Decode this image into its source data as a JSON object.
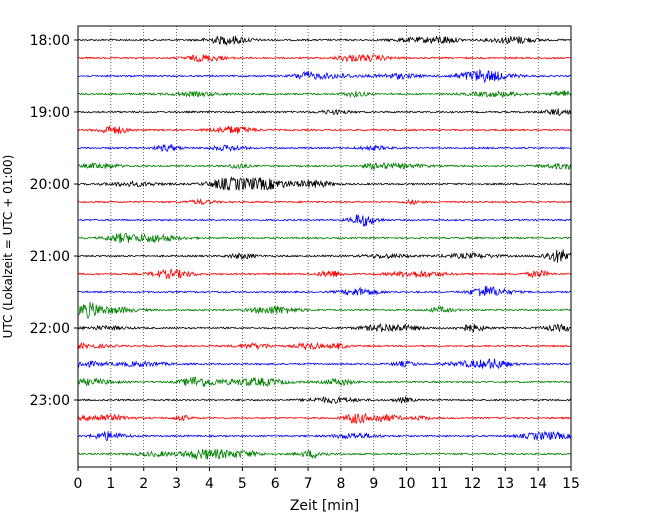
{
  "chart_data": {
    "type": "line",
    "subtype": "helicorder",
    "xlabel": "Zeit  [min]",
    "ylabel": "UTC (Lokalzeit = UTC + 01:00)",
    "xlim": [
      0,
      15
    ],
    "x_ticks": [
      0,
      1,
      2,
      3,
      4,
      5,
      6,
      7,
      8,
      9,
      10,
      11,
      12,
      13,
      14,
      15
    ],
    "x_tick_labels": [
      "0",
      "1",
      "2",
      "3",
      "4",
      "5",
      "6",
      "7",
      "8",
      "9",
      "10",
      "11",
      "12",
      "13",
      "14",
      "15"
    ],
    "y_tick_labels": [
      "18:00",
      "19:00",
      "20:00",
      "21:00",
      "22:00",
      "23:00"
    ],
    "trace_count": 24,
    "minutes_per_trace": 15,
    "traces_per_hour": 4,
    "trace_colors": [
      "#000000",
      "#ff0000",
      "#0000ff",
      "#008000"
    ],
    "grid": {
      "x": "dotted vertical at each minute",
      "y": false
    },
    "legend": "none"
  }
}
